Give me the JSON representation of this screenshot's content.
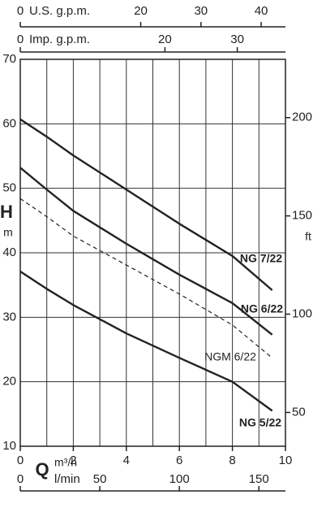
{
  "chart_data": {
    "type": "line",
    "x_label": "Q",
    "x_unit": "m³/h",
    "y_label": "H",
    "y_unit": "m",
    "y2_unit": "ft",
    "xlim": [
      0,
      10
    ],
    "xticks": [
      0,
      2,
      4,
      6,
      8,
      10
    ],
    "ylim": [
      10,
      70
    ],
    "yticks": [
      10,
      20,
      30,
      40,
      50,
      60,
      70
    ],
    "y2lim": [
      32.81,
      229.66
    ],
    "y2ticks": [
      50,
      100,
      150,
      200
    ],
    "grid": true,
    "secondary_x_axes": [
      {
        "label": "U.S. g.p.m.",
        "lim": [
          0,
          44.03
        ],
        "ticks": [
          0,
          20,
          30,
          40
        ]
      },
      {
        "label": "Imp. g.p.m.",
        "lim": [
          0,
          36.66
        ],
        "ticks": [
          0,
          20,
          30
        ]
      },
      {
        "label": "l/min",
        "lim": [
          0,
          166.7
        ],
        "ticks": [
          0,
          50,
          100,
          150
        ]
      }
    ],
    "x": [
      0,
      1,
      2,
      4,
      6,
      8,
      9.5
    ],
    "series": [
      {
        "name": "NG 7/22",
        "color": "#222222",
        "line_style": "solid",
        "values": [
          60.7,
          58,
          55.1,
          49.8,
          44.5,
          39.5,
          34.2
        ]
      },
      {
        "name": "NG 6/22",
        "color": "#222222",
        "line_style": "solid",
        "values": [
          53.2,
          49.8,
          46.5,
          41.4,
          36.6,
          32.2,
          27.3
        ]
      },
      {
        "name": "NGM 6/22",
        "color": "#222222",
        "line_style": "dashed",
        "values": [
          48.4,
          45.6,
          42.6,
          38.1,
          33.6,
          28.8,
          23.7
        ]
      },
      {
        "name": "NG 5/22",
        "color": "#222222",
        "line_style": "solid",
        "values": [
          37.1,
          34.4,
          31.9,
          27.5,
          23.7,
          20,
          15.5
        ]
      }
    ]
  }
}
